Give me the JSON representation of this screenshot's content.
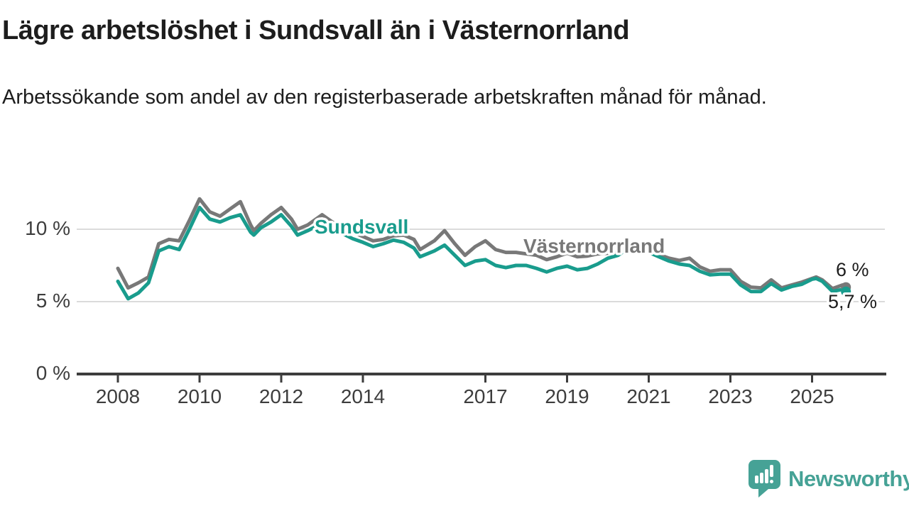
{
  "title": "Lägre arbetslöshet i Sundsvall än i Västernorrland",
  "subtitle": "Arbetssökande som andel av den registerbaserade arbetskraften månad för månad.",
  "branding": {
    "logo_text": "Newsworthy",
    "logo_icon": "speech-bubble-bar-chart-icon"
  },
  "colors": {
    "sundsvall": "#199c8d",
    "vasternorrland": "#787878",
    "axis": "#3d3d3d",
    "grid": "#dbdbdb",
    "text": "#1d1d1d",
    "logo": "#46a296",
    "background": "#ffffff"
  },
  "chart_data": {
    "type": "line",
    "title": "Lägre arbetslöshet i Sundsvall än i Västernorrland",
    "subtitle": "Arbetssökande som andel av den registerbaserade arbetskraften månad för månad.",
    "xlabel": "",
    "ylabel": "",
    "x_unit": "decimal_year",
    "xlim": [
      2007.0,
      2026.8
    ],
    "ylim": [
      0,
      12.6
    ],
    "grid": "horizontal",
    "legend_position": "inline-labels",
    "y_ticks": [
      0,
      5,
      10
    ],
    "y_tick_labels": [
      "0 %",
      "5 %",
      "10 %"
    ],
    "x_ticks": [
      2008,
      2010,
      2012,
      2014,
      2017,
      2019,
      2021,
      2023,
      2025
    ],
    "x_tick_labels": [
      "2008",
      "2010",
      "2012",
      "2014",
      "2017",
      "2019",
      "2021",
      "2023",
      "2025"
    ],
    "series": [
      {
        "name": "Västernorrland",
        "color": "#787878",
        "end_label": "6 %",
        "end_value": 6.0,
        "x": [
          2008,
          2008.25,
          2008.5,
          2008.75,
          2009,
          2009.25,
          2009.5,
          2009.75,
          2010,
          2010.25,
          2010.5,
          2010.75,
          2011,
          2011.25,
          2011.33,
          2011.5,
          2011.75,
          2012,
          2012.25,
          2012.4,
          2012.65,
          2013,
          2013.25,
          2013.5,
          2013.75,
          2014,
          2014.25,
          2014.5,
          2014.75,
          2015,
          2015.25,
          2015.4,
          2015.75,
          2016,
          2016.25,
          2016.5,
          2016.75,
          2017,
          2017.25,
          2017.5,
          2017.75,
          2018,
          2018.25,
          2018.5,
          2018.75,
          2019,
          2019.25,
          2019.5,
          2019.75,
          2020,
          2020.25,
          2020.5,
          2020.75,
          2021,
          2021.25,
          2021.5,
          2021.75,
          2022,
          2022.25,
          2022.5,
          2022.75,
          2023,
          2023.25,
          2023.5,
          2023.75,
          2024,
          2024.25,
          2024.5,
          2024.75,
          2025,
          2025.1,
          2025.25,
          2025.5,
          2025.75,
          2025.83
        ],
        "values": [
          7.3,
          5.95,
          6.3,
          6.7,
          9.0,
          9.3,
          9.2,
          10.6,
          12.1,
          11.2,
          10.9,
          11.4,
          11.9,
          10.3,
          9.9,
          10.4,
          11.0,
          11.5,
          10.7,
          10.0,
          10.3,
          11.0,
          10.5,
          10.1,
          9.8,
          9.5,
          9.2,
          9.3,
          9.55,
          9.6,
          9.3,
          8.6,
          9.2,
          9.9,
          9.0,
          8.2,
          8.8,
          9.2,
          8.6,
          8.4,
          8.4,
          8.3,
          8.2,
          7.9,
          8.1,
          8.35,
          8.1,
          8.15,
          8.3,
          8.35,
          8.4,
          8.9,
          8.8,
          8.6,
          8.25,
          8.0,
          7.85,
          8.0,
          7.4,
          7.1,
          7.2,
          7.2,
          6.4,
          6.0,
          5.95,
          6.5,
          5.95,
          6.15,
          6.35,
          6.6,
          6.7,
          6.5,
          5.9,
          6.15,
          6.0
        ]
      },
      {
        "name": "Sundsvall",
        "color": "#199c8d",
        "end_label": "5,7 %",
        "end_value": 5.7,
        "x": [
          2008,
          2008.25,
          2008.5,
          2008.75,
          2009,
          2009.25,
          2009.5,
          2009.75,
          2010,
          2010.25,
          2010.5,
          2010.75,
          2011,
          2011.25,
          2011.33,
          2011.5,
          2011.75,
          2012,
          2012.25,
          2012.4,
          2012.65,
          2013,
          2013.25,
          2013.5,
          2013.75,
          2014,
          2014.25,
          2014.5,
          2014.75,
          2015,
          2015.25,
          2015.4,
          2015.75,
          2016,
          2016.25,
          2016.5,
          2016.75,
          2017,
          2017.25,
          2017.5,
          2017.75,
          2018,
          2018.25,
          2018.5,
          2018.75,
          2019,
          2019.25,
          2019.5,
          2019.75,
          2020,
          2020.25,
          2020.5,
          2020.75,
          2021,
          2021.25,
          2021.5,
          2021.75,
          2022,
          2022.25,
          2022.5,
          2022.75,
          2023,
          2023.25,
          2023.5,
          2023.75,
          2024,
          2024.25,
          2024.5,
          2024.75,
          2025,
          2025.1,
          2025.25,
          2025.5,
          2025.75,
          2025.83
        ],
        "values": [
          6.4,
          5.2,
          5.6,
          6.3,
          8.5,
          8.8,
          8.6,
          10.0,
          11.5,
          10.7,
          10.5,
          10.8,
          11.0,
          9.8,
          9.6,
          10.1,
          10.5,
          11.0,
          10.2,
          9.6,
          9.9,
          10.4,
          10.0,
          9.7,
          9.35,
          9.1,
          8.8,
          9.0,
          9.25,
          9.1,
          8.7,
          8.1,
          8.5,
          8.9,
          8.2,
          7.5,
          7.8,
          7.9,
          7.5,
          7.35,
          7.5,
          7.5,
          7.3,
          7.05,
          7.3,
          7.45,
          7.2,
          7.3,
          7.6,
          8.0,
          8.2,
          8.7,
          8.6,
          8.4,
          8.1,
          7.8,
          7.6,
          7.5,
          7.1,
          6.85,
          6.9,
          6.9,
          6.15,
          5.7,
          5.7,
          6.25,
          5.8,
          6.05,
          6.2,
          6.55,
          6.6,
          6.4,
          5.7,
          5.85,
          5.7
        ]
      }
    ]
  }
}
